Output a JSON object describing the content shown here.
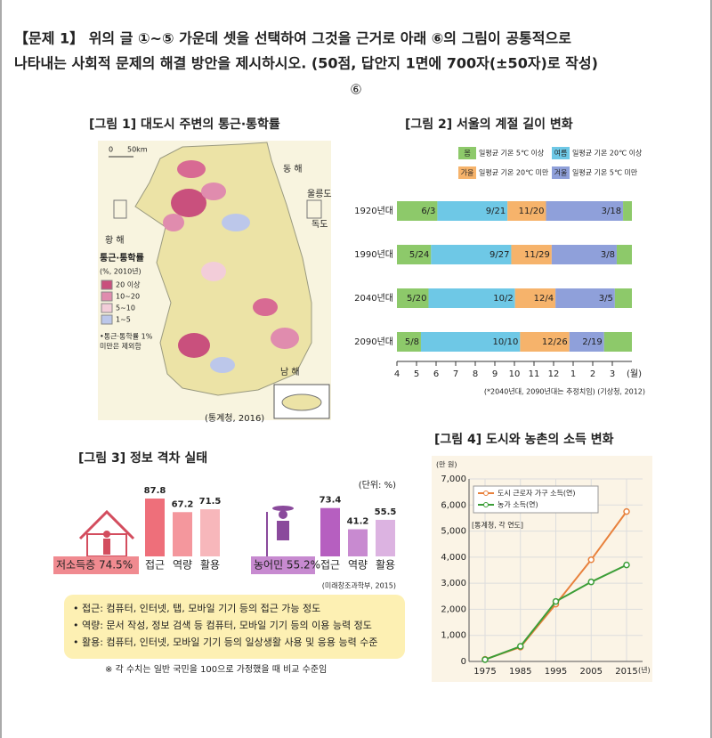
{
  "question": {
    "line1": "【문제 1】 위의 글 ①~⑤ 가운데 셋을 선택하여 그것을 근거로 아래 ⑥의 그림이 공통적으로",
    "line2": "나타내는 사회적 문제의 해결 방안을 제시하시오. (50점, 답안지 1면에 700자(±50자)로 작성)",
    "marker": "⑥"
  },
  "figure1": {
    "title": "[그림 1] 대도시 주변의 통근·통학률",
    "scale_zero": "0",
    "scale_km": "50km",
    "labels": [
      "동 해",
      "울릉도",
      "독도",
      "황 해",
      "남 해"
    ],
    "legend_title": "통근·통학률",
    "legend_unit": "(%, 2010년)",
    "legend": [
      {
        "label": "20 이상",
        "color": "#c9507d"
      },
      {
        "label": "10~20",
        "color": "#e08cae"
      },
      {
        "label": "5~10",
        "color": "#f2cdd9"
      },
      {
        "label": "1~5",
        "color": "#bcc7ea"
      }
    ],
    "note": [
      "•통근·통학률 1%",
      "미만은 제외함"
    ],
    "source": "(통계청, 2016)"
  },
  "figure2": {
    "title": "[그림 2] 서울의 계절 길이 변화",
    "legend": [
      {
        "season": "봄",
        "desc": "일평균 기온 5℃ 이상",
        "color": "#8dc96a"
      },
      {
        "season": "여름",
        "desc": "일평균 기온 20℃ 이상",
        "color": "#6ec8e6"
      },
      {
        "season": "가을",
        "desc": "일평균 기온 20℃ 미만",
        "color": "#f6b36b"
      },
      {
        "season": "겨울",
        "desc": "일평균 기온 5℃ 미만",
        "color": "#8fa0da"
      }
    ],
    "rows": [
      {
        "label": "1920년대",
        "dates": [
          "6/3",
          "9/21",
          "11/20",
          "3/18"
        ]
      },
      {
        "label": "1990년대",
        "dates": [
          "5/24",
          "9/27",
          "11/29",
          "3/8"
        ]
      },
      {
        "label": "2040년대",
        "dates": [
          "5/20",
          "10/2",
          "12/4",
          "3/5"
        ]
      },
      {
        "label": "2090년대",
        "dates": [
          "5/8",
          "10/10",
          "12/26",
          "2/19"
        ]
      }
    ],
    "months": [
      4,
      5,
      6,
      7,
      8,
      9,
      10,
      11,
      12,
      1,
      2,
      3
    ],
    "month_unit": "(월)",
    "note": "(*2040년대, 2090년대는 추정치임) (기상청, 2012)"
  },
  "figure3": {
    "title": "[그림 3] 정보 격차 실태",
    "unit": "(단위: %)",
    "groups": [
      {
        "label": "저소득층 74.5%",
        "color": "#f08a90",
        "categories": [
          "접근",
          "역량",
          "활용"
        ],
        "values": [
          87.8,
          67.2,
          71.5
        ],
        "bar_colors": [
          "#ee6f7a",
          "#f4979d",
          "#f7b7bb"
        ]
      },
      {
        "label": "농어민 55.2%",
        "color": "#c78ad0",
        "categories": [
          "접근",
          "역량",
          "활용"
        ],
        "values": [
          73.4,
          41.2,
          55.5
        ],
        "bar_colors": [
          "#b65fc0",
          "#c88ad0",
          "#dcb3e1"
        ]
      }
    ],
    "source": "(미래창조과학부, 2015)",
    "notes": [
      "• 접근: 컴퓨터, 인터넷, 탭, 모바일 기기 등의 접근 가능 정도",
      "• 역량: 문서 작성, 정보 검색 등 컴퓨터, 모바일 기기 등의 이용 능력 정도",
      "• 활용: 컴퓨터, 인터넷, 모바일 기기 등의 일상생활 사용 및 응용 능력 수준"
    ],
    "footnote": "※ 각 수치는 일반 국민을 100으로 가정했을 때 비교 수준임"
  },
  "figure4": {
    "chart_data": {
      "type": "line",
      "title": "[그림 4] 도시와 농촌의 소득 변화",
      "y_unit": "(만 원)",
      "x_unit": "(년)",
      "source": "[통계청, 각 연도]",
      "x": [
        1975,
        1985,
        1995,
        2005,
        2015
      ],
      "series": [
        {
          "name": "도시 근로자 가구 소득(연)",
          "color": "#e8813c",
          "values": [
            80,
            550,
            2200,
            3900,
            5750
          ]
        },
        {
          "name": "농가 소득(연)",
          "color": "#3c9e38",
          "values": [
            70,
            580,
            2300,
            3050,
            3700
          ]
        }
      ],
      "xlim": [
        1975,
        2015
      ],
      "xticks": [
        1975,
        1985,
        1995,
        2005,
        2015
      ],
      "ylim": [
        0,
        7000
      ],
      "yticks": [
        0,
        {
          "value": 1000,
          "label": "1,000"
        },
        {
          "value": 2000,
          "label": "2,000"
        },
        {
          "value": 3000,
          "label": "3,000"
        },
        {
          "value": 4000,
          "label": "4,000"
        },
        {
          "value": 5000,
          "label": "5,000"
        },
        {
          "value": 6000,
          "label": "6,000"
        },
        {
          "value": 7000,
          "label": "7,000"
        }
      ],
      "grid": true
    }
  }
}
